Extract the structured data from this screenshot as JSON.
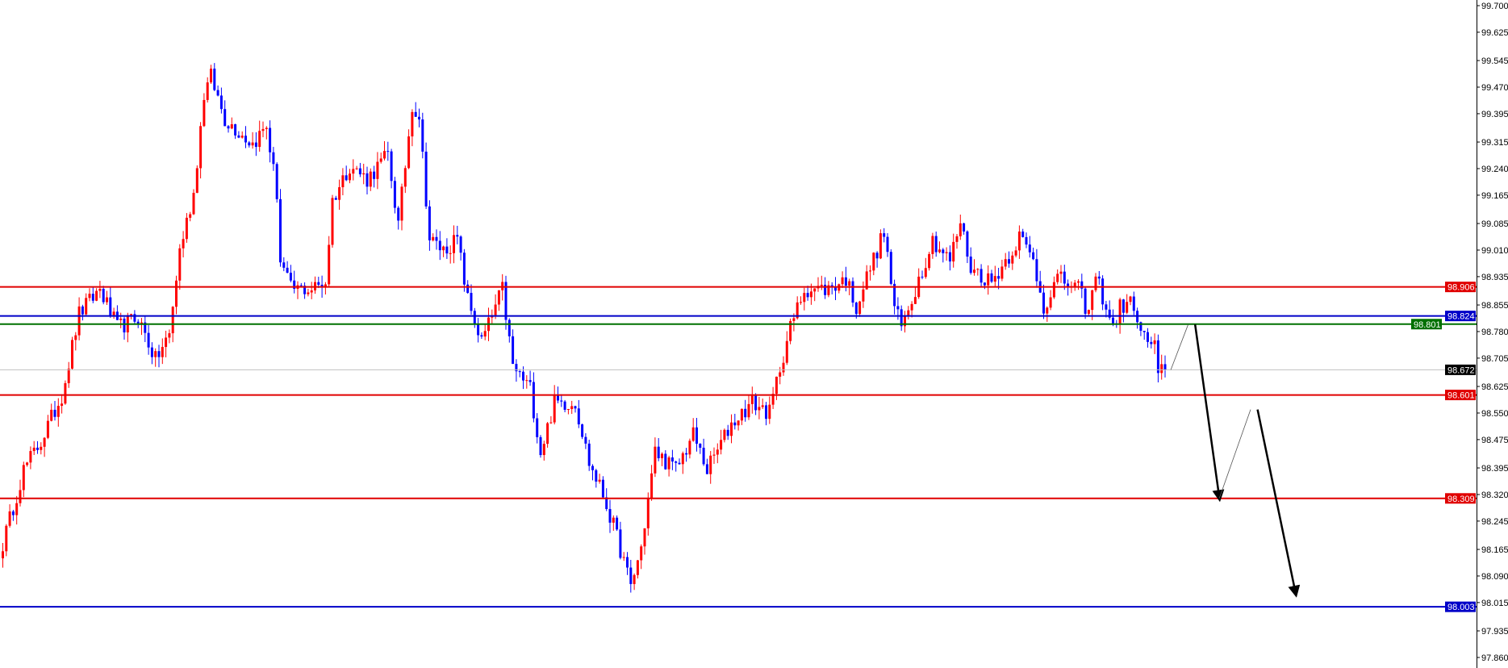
{
  "chart_data": {
    "type": "candlestick",
    "title": "",
    "ylim": [
      97.845,
      99.715
    ],
    "y_ticks": [
      "99.700",
      "99.625",
      "99.545",
      "99.470",
      "99.395",
      "99.315",
      "99.240",
      "99.165",
      "99.085",
      "99.010",
      "98.935",
      "98.855",
      "98.780",
      "98.705",
      "98.625",
      "98.550",
      "98.475",
      "98.395",
      "98.320",
      "98.245",
      "98.165",
      "98.090",
      "98.015",
      "97.935",
      "97.860"
    ],
    "bull_color": "#ff0000",
    "bear_color": "#0000ff",
    "bar_count": 336,
    "close_path": [
      [
        0,
        98.18
      ],
      [
        6,
        98.39
      ],
      [
        11,
        98.47
      ],
      [
        17,
        98.6
      ],
      [
        22,
        98.83
      ],
      [
        28,
        98.9
      ],
      [
        33,
        98.79
      ],
      [
        39,
        98.82
      ],
      [
        44,
        98.7
      ],
      [
        48,
        98.77
      ],
      [
        51,
        99.01
      ],
      [
        55,
        99.17
      ],
      [
        58,
        99.45
      ],
      [
        60,
        99.5
      ],
      [
        64,
        99.38
      ],
      [
        72,
        99.31
      ],
      [
        76,
        99.36
      ],
      [
        79,
        99.17
      ],
      [
        80,
        98.98
      ],
      [
        83,
        98.9
      ],
      [
        89,
        98.9
      ],
      [
        93,
        98.92
      ],
      [
        95,
        99.15
      ],
      [
        100,
        99.25
      ],
      [
        105,
        99.21
      ],
      [
        111,
        99.28
      ],
      [
        114,
        99.08
      ],
      [
        118,
        99.42
      ],
      [
        120,
        99.39
      ],
      [
        123,
        99.04
      ],
      [
        127,
        99.01
      ],
      [
        131,
        99.04
      ],
      [
        134,
        98.87
      ],
      [
        138,
        98.75
      ],
      [
        144,
        98.9
      ],
      [
        147,
        98.68
      ],
      [
        152,
        98.62
      ],
      [
        155,
        98.44
      ],
      [
        159,
        98.58
      ],
      [
        165,
        98.58
      ],
      [
        169,
        98.41
      ],
      [
        173,
        98.32
      ],
      [
        177,
        98.2
      ],
      [
        181,
        98.06
      ],
      [
        184,
        98.17
      ],
      [
        188,
        98.44
      ],
      [
        194,
        98.39
      ],
      [
        199,
        98.49
      ],
      [
        203,
        98.39
      ],
      [
        210,
        98.52
      ],
      [
        216,
        98.58
      ],
      [
        221,
        98.55
      ],
      [
        224,
        98.68
      ],
      [
        227,
        98.79
      ],
      [
        231,
        98.9
      ],
      [
        238,
        98.9
      ],
      [
        243,
        98.93
      ],
      [
        246,
        98.85
      ],
      [
        250,
        98.96
      ],
      [
        254,
        99.06
      ],
      [
        257,
        98.85
      ],
      [
        259,
        98.79
      ],
      [
        263,
        98.9
      ],
      [
        268,
        99.04
      ],
      [
        273,
        98.98
      ],
      [
        276,
        99.09
      ],
      [
        279,
        98.96
      ],
      [
        285,
        98.92
      ],
      [
        291,
        99.01
      ],
      [
        293,
        99.05
      ],
      [
        297,
        98.98
      ],
      [
        300,
        98.85
      ],
      [
        304,
        98.93
      ],
      [
        310,
        98.9
      ],
      [
        313,
        98.83
      ],
      [
        315,
        98.94
      ],
      [
        320,
        98.79
      ],
      [
        322,
        98.85
      ],
      [
        326,
        98.86
      ],
      [
        328,
        98.77
      ],
      [
        332,
        98.74
      ],
      [
        333,
        98.66
      ],
      [
        335,
        98.672
      ]
    ],
    "levels": [
      {
        "price": 98.906,
        "label": "98.906",
        "color": "#e00000"
      },
      {
        "price": 98.824,
        "label": "98.824",
        "color": "#0000c8"
      },
      {
        "price": 98.801,
        "label": "98.801",
        "color": "#007000"
      },
      {
        "price": 98.601,
        "label": "98.601",
        "color": "#e00000"
      },
      {
        "price": 98.309,
        "label": "98.309",
        "color": "#e00000"
      },
      {
        "price": 98.003,
        "label": "98.003",
        "color": "#0000c8"
      }
    ],
    "current_price": {
      "price": 98.672,
      "label": "98.672",
      "color": "#000000",
      "line_color": "#c0c0c0"
    },
    "projection": [
      {
        "from": [
          337,
          98.672
        ],
        "to": [
          342,
          98.8
        ],
        "style": "thin"
      },
      {
        "from": [
          344,
          98.8
        ],
        "to": [
          351,
          98.31
        ],
        "style": "arrow"
      },
      {
        "from": [
          351,
          98.31
        ],
        "to": [
          360,
          98.56
        ],
        "style": "thin"
      },
      {
        "from": [
          362,
          98.56
        ],
        "to": [
          373,
          98.04
        ],
        "style": "arrow"
      }
    ]
  }
}
